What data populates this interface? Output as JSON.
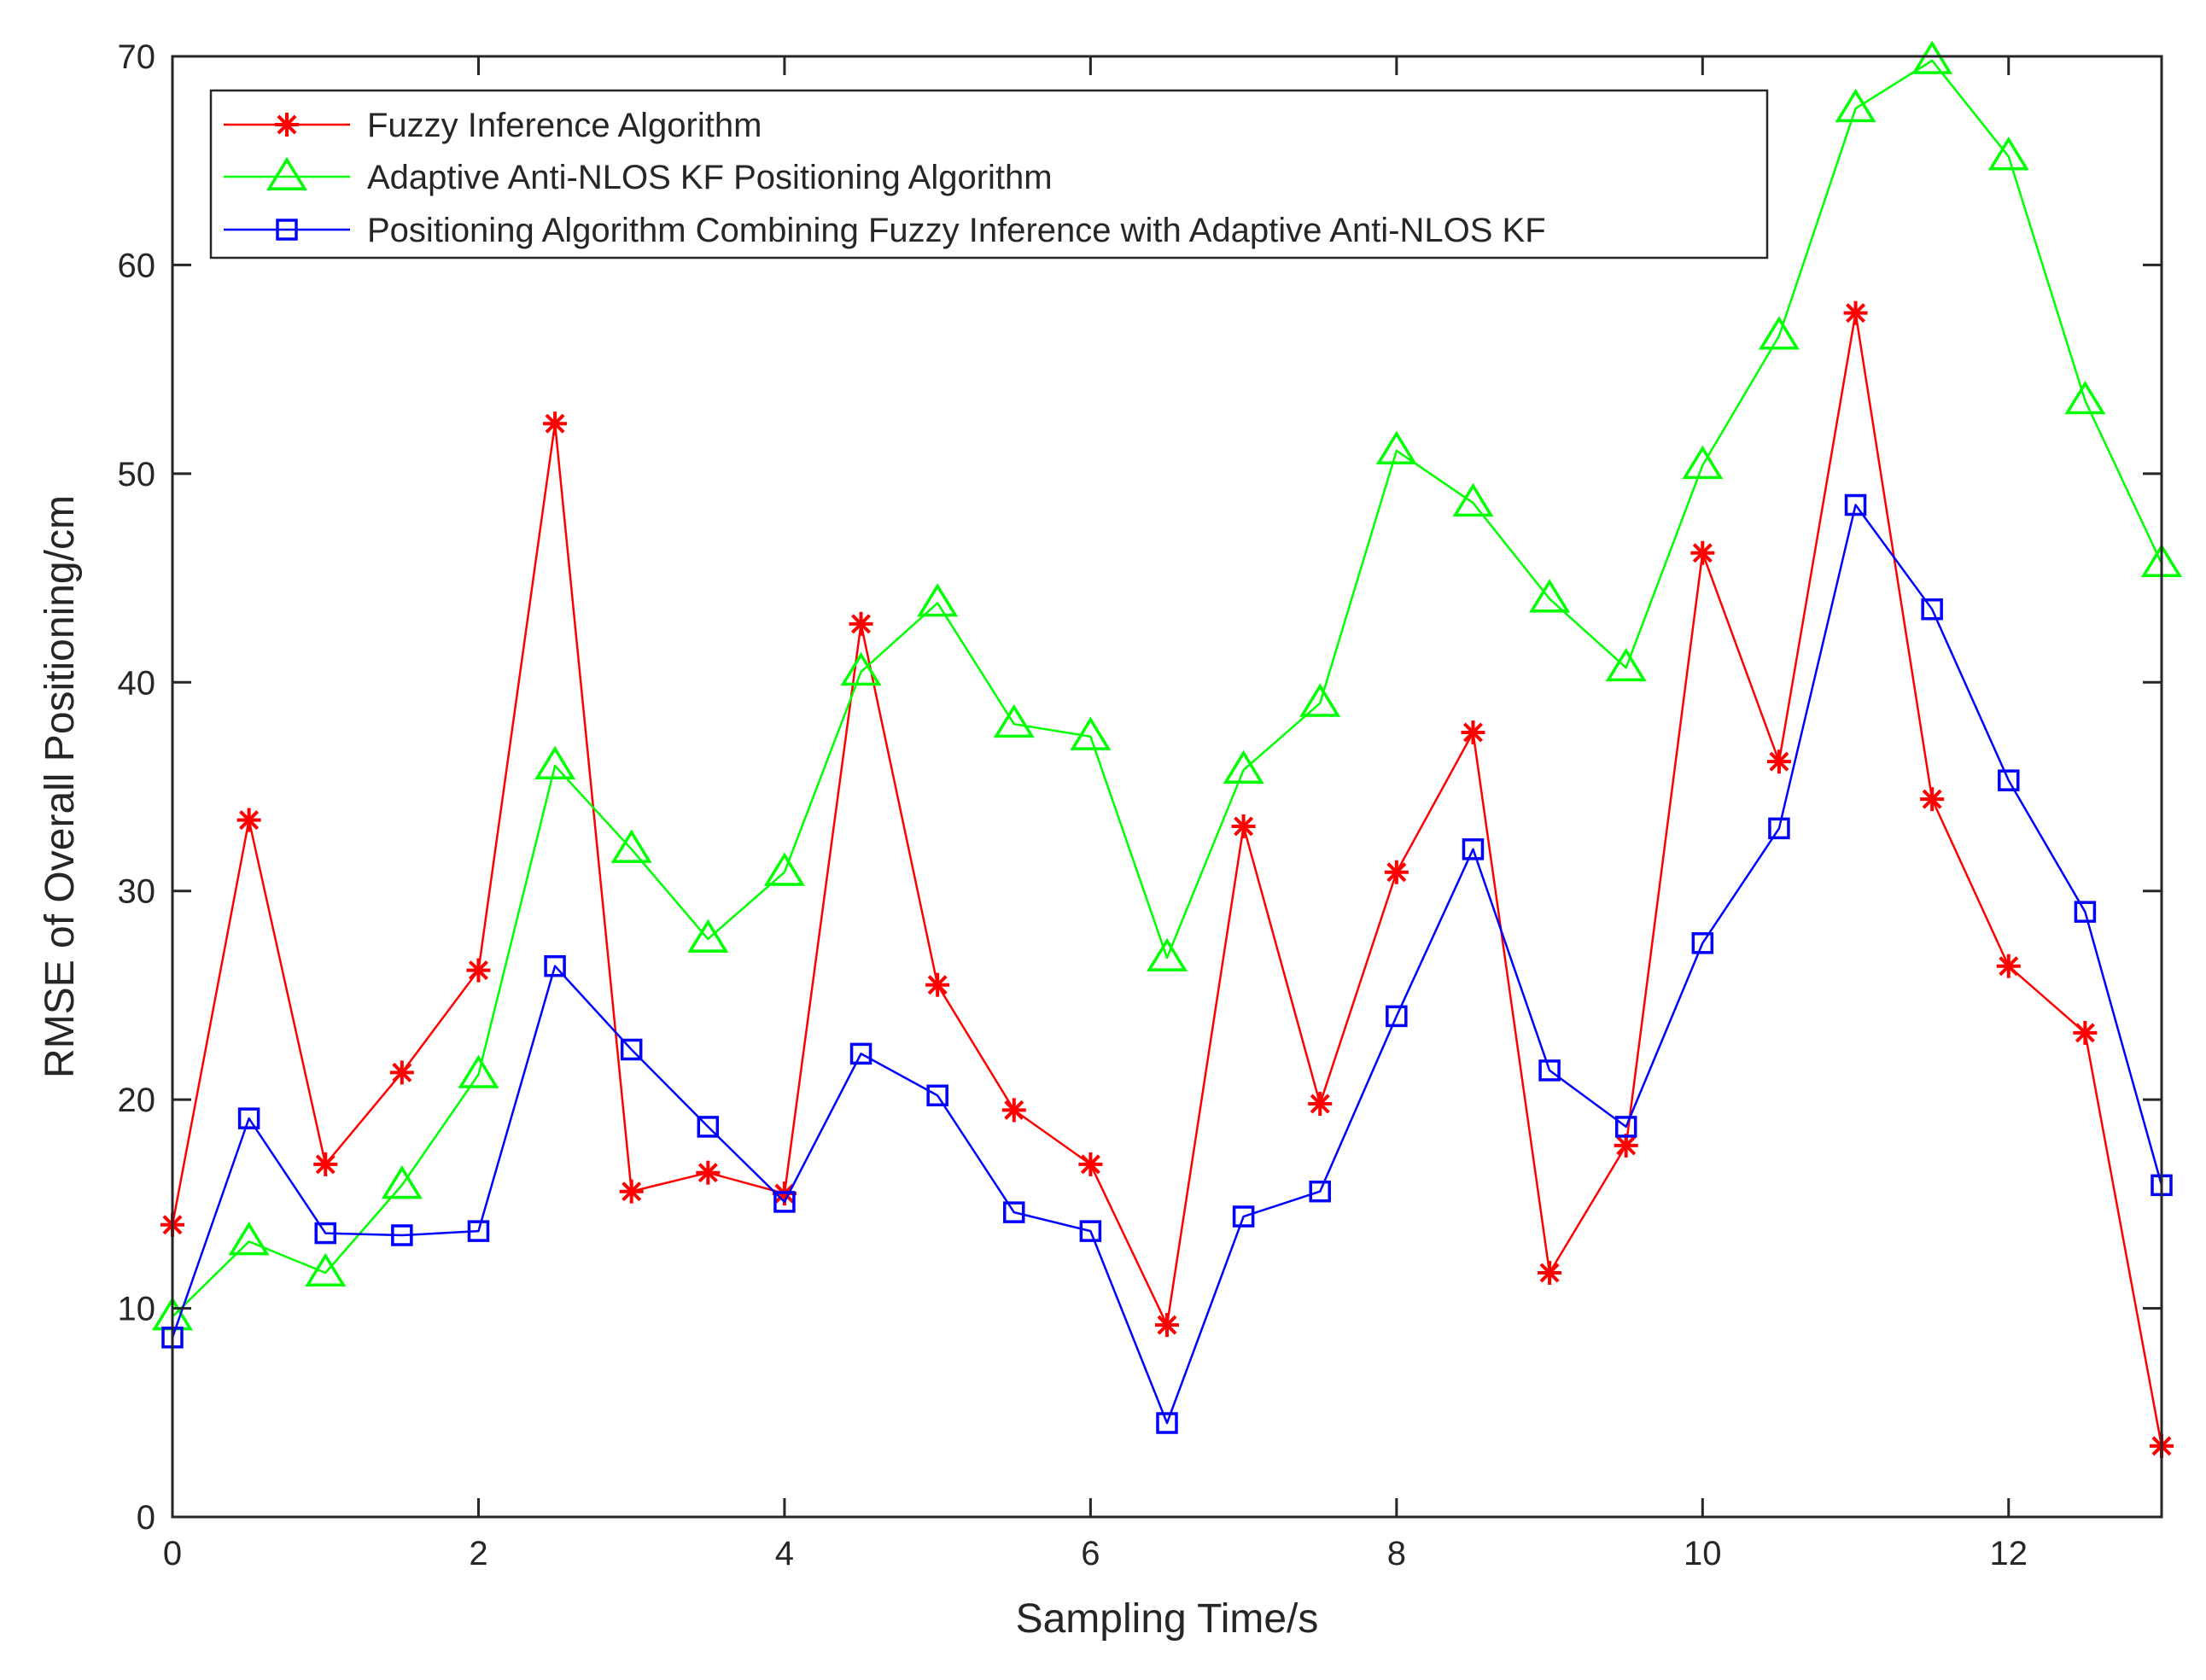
{
  "chart_data": {
    "type": "line",
    "title": "",
    "xlabel": "Sampling Time/s",
    "ylabel": "RMSE of Overall Positioning/cm",
    "xlim": [
      0,
      13
    ],
    "ylim": [
      0,
      70
    ],
    "xticks": [
      0,
      2,
      4,
      6,
      8,
      10,
      12
    ],
    "yticks": [
      0,
      10,
      20,
      30,
      40,
      50,
      60,
      70
    ],
    "grid": false,
    "legend_position": "top-left",
    "x": [
      0,
      0.5,
      1,
      1.5,
      2,
      2.5,
      3,
      3.5,
      4,
      4.5,
      5,
      5.5,
      6,
      6.5,
      7,
      7.5,
      8,
      8.5,
      9,
      9.5,
      10,
      10.5,
      11,
      11.5,
      12,
      12.5,
      13
    ],
    "series": [
      {
        "name": "Fuzzy Inference Algorithm",
        "color": "#ff0000",
        "marker": "asterisk",
        "values": [
          14,
          33.4,
          16.9,
          21.3,
          26.2,
          52.4,
          15.6,
          16.5,
          15.5,
          42.8,
          25.5,
          19.5,
          16.9,
          9.2,
          33.1,
          19.8,
          30.9,
          37.6,
          11.7,
          17.8,
          46.2,
          36.2,
          57.7,
          34.4,
          26.4,
          23.2,
          3.4
        ]
      },
      {
        "name": "Adaptive Anti-NLOS KF Positioning Algorithm",
        "color": "#00ff00",
        "marker": "triangle",
        "values": [
          9.6,
          13.2,
          11.7,
          15.9,
          21.2,
          36,
          32,
          27.7,
          30.9,
          40.5,
          43.8,
          38,
          37.4,
          26.8,
          35.8,
          39,
          51.1,
          48.6,
          44,
          40.7,
          50.4,
          56.6,
          67.5,
          69.8,
          65.2,
          53.5,
          45.7
        ]
      },
      {
        "name": "Positioning Algorithm Combining Fuzzy Inference with Adaptive Anti-NLOS KF",
        "color": "#0000ff",
        "marker": "square",
        "values": [
          8.6,
          19.1,
          13.6,
          13.5,
          13.7,
          26.4,
          22.4,
          18.7,
          15.1,
          22.2,
          20.2,
          14.6,
          13.7,
          4.5,
          14.4,
          15.6,
          24,
          32,
          21.4,
          18.7,
          27.5,
          33,
          48.5,
          43.5,
          35.3,
          29,
          15.9
        ]
      }
    ]
  }
}
